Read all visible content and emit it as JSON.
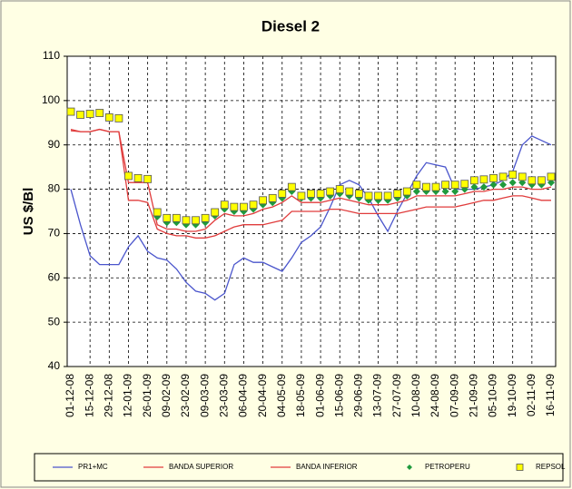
{
  "chart_data": {
    "type": "line",
    "title": "Diesel 2",
    "y_label": "US $/Bl",
    "categories": [
      "01-12-08",
      null,
      "15-12-08",
      null,
      "29-12-08",
      null,
      "12-01-09",
      null,
      "26-01-09",
      null,
      "09-02-09",
      null,
      "23-02-09",
      null,
      "09-03-09",
      null,
      "23-03-09",
      null,
      "06-04-09",
      null,
      "20-04-09",
      null,
      "04-05-09",
      null,
      "18-05-09",
      null,
      "01-06-09",
      null,
      "15-06-09",
      null,
      "29-06-09",
      null,
      "13-07-09",
      null,
      "27-07-09",
      null,
      "10-08-09",
      null,
      "24-08-09",
      null,
      "07-09-09",
      null,
      "21-09-09",
      null,
      "05-10-09",
      null,
      "19-10-09",
      null,
      "02-11-09",
      null,
      "16-11-09"
    ],
    "series": [
      {
        "name": "PR1+MC",
        "color": "#4a55cc",
        "mark": "line",
        "values": [
          80,
          72,
          65,
          63,
          63,
          63,
          67,
          69.5,
          66,
          64.5,
          64,
          62,
          59,
          57,
          56.5,
          55,
          56.5,
          63,
          64.5,
          63.5,
          63.5,
          62.5,
          61.5,
          64.5,
          68,
          69.5,
          71.5,
          76,
          81,
          82,
          81,
          78,
          74,
          70.5,
          75,
          79,
          83,
          86,
          85.5,
          85,
          80,
          80,
          80,
          80.5,
          81,
          82,
          84,
          90,
          92,
          91,
          90
        ]
      },
      {
        "name": "BANDA SUPERIOR",
        "color": "#e03c3c",
        "mark": "line",
        "values": [
          93.5,
          93,
          93,
          93.5,
          93,
          93,
          81.5,
          81.5,
          81.5,
          72,
          71,
          71,
          70.5,
          70.5,
          71,
          73,
          74.5,
          74,
          74,
          74.5,
          75.5,
          76,
          77,
          78.5,
          77,
          77,
          77,
          77.5,
          78,
          77.5,
          77,
          76.5,
          76.5,
          76.5,
          77,
          77.5,
          78.5,
          78.5,
          78.5,
          78.5,
          78.5,
          79,
          79.5,
          79.5,
          80,
          80,
          80.5,
          80.5,
          80,
          80,
          80.5
        ]
      },
      {
        "name": "BANDA INFERIOR",
        "color": "#e03c3c",
        "mark": "line",
        "values": [
          93.2,
          93,
          93,
          93.5,
          93,
          93,
          77.5,
          77.5,
          77,
          71,
          70,
          69.5,
          69.5,
          69,
          69,
          69.5,
          70.5,
          71.5,
          72,
          72,
          72,
          72.5,
          73,
          75,
          75,
          75,
          75,
          75.5,
          75.5,
          75,
          74.5,
          74.5,
          74.5,
          74.5,
          74.5,
          75,
          75.5,
          76,
          76,
          76,
          76,
          76.5,
          77,
          77.5,
          77.5,
          78,
          78.5,
          78.5,
          78,
          77.5,
          77.5
        ]
      },
      {
        "name": "PETROPERU",
        "color": "#1f9a3c",
        "mark": "diamond",
        "values": [
          97.5,
          96.8,
          97,
          97.2,
          96.2,
          96,
          83,
          82.5,
          82.3,
          73.8,
          72.5,
          72.5,
          72,
          72,
          72.5,
          74,
          75.5,
          75,
          75,
          75.5,
          76.5,
          77,
          78,
          79.5,
          78,
          78,
          78,
          78.5,
          79,
          78.5,
          78,
          77.5,
          77.5,
          77.5,
          78,
          78.5,
          79.5,
          79.5,
          79.5,
          79.5,
          79.5,
          80,
          80.5,
          80.5,
          81,
          81,
          81.5,
          81.5,
          81,
          81,
          81.5
        ]
      },
      {
        "name": "REPSOL",
        "color": "#ffff00",
        "mark": "square",
        "values": [
          97.5,
          96.8,
          97,
          97.2,
          96.2,
          96,
          83,
          82.5,
          82.3,
          74.8,
          73.5,
          73.5,
          73,
          73,
          73.5,
          74.8,
          76.5,
          76,
          76,
          76.5,
          77.5,
          78,
          79,
          80.5,
          78.5,
          79,
          79,
          79.5,
          80,
          79.5,
          79,
          78.5,
          78.5,
          78.5,
          79,
          79.5,
          81,
          80.5,
          80.5,
          81,
          81,
          81.2,
          82,
          82.2,
          82.5,
          82.8,
          83.3,
          82.8,
          82,
          82,
          82.8
        ]
      }
    ],
    "ylim": [
      40,
      110
    ],
    "yticks": [
      40,
      50,
      60,
      70,
      80,
      90,
      100,
      110
    ],
    "grid": true
  }
}
